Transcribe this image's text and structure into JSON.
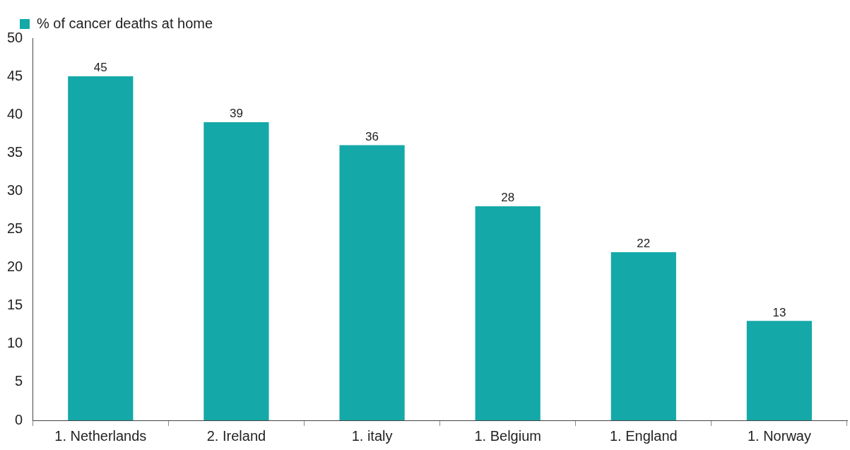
{
  "chart_data": {
    "type": "bar",
    "categories": [
      "1. Netherlands",
      "2. Ireland",
      "1. italy",
      "1. Belgium",
      "1. England",
      "1. Norway"
    ],
    "series": [
      {
        "name": "% of cancer deaths at home",
        "color": "#14a8a8",
        "values": [
          45,
          39,
          36,
          28,
          22,
          13
        ]
      }
    ],
    "ylim": [
      0,
      50
    ],
    "yticks": [
      0,
      5,
      10,
      15,
      20,
      25,
      30,
      35,
      40,
      45,
      50
    ],
    "grid": false,
    "legend": "top left",
    "data_labels": true
  }
}
